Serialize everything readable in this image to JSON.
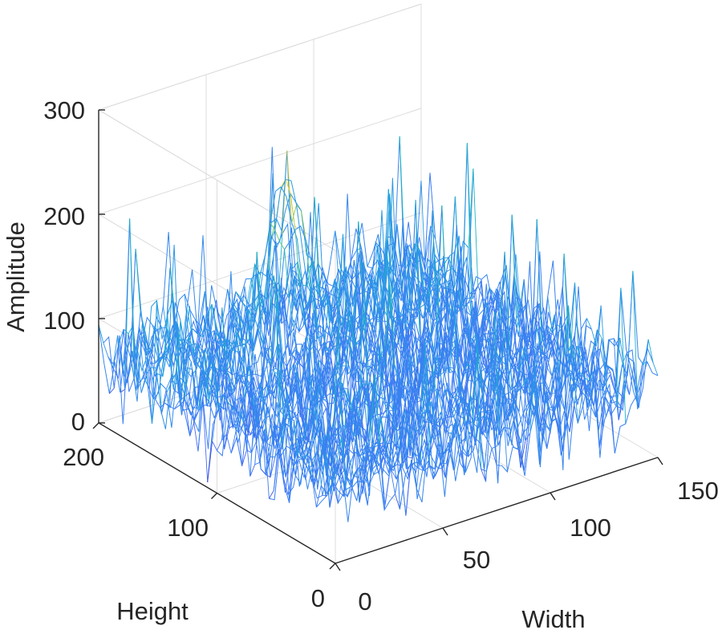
{
  "chart_data": {
    "type": "surface",
    "x_axis": {
      "label": "Width",
      "range": [
        0,
        150
      ],
      "ticks": [
        "0",
        "50",
        "100",
        "150"
      ]
    },
    "y_axis": {
      "label": "Height",
      "range": [
        0,
        200
      ],
      "ticks": [
        "0",
        "100",
        "200"
      ]
    },
    "z_axis": {
      "label": "Amplitude",
      "range": [
        0,
        300
      ],
      "ticks": [
        "0",
        "100",
        "200",
        "300"
      ]
    },
    "grid": true,
    "colormap": "parula",
    "surface_summary": {
      "typical_amplitude": [
        20,
        110
      ],
      "peak_amplitude": 230,
      "peak_location": {
        "width": 65,
        "height": 160
      }
    },
    "colors": {
      "low": "#3e26a8",
      "mid": "#1fb2c8",
      "high": "#f9fb15"
    }
  }
}
